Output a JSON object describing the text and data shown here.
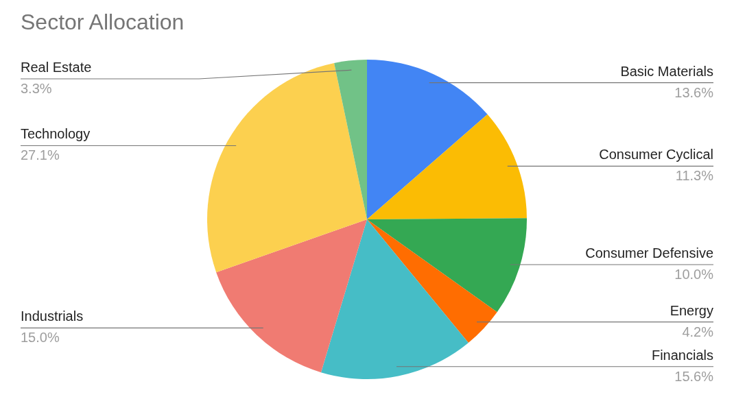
{
  "chart_data": {
    "type": "pie",
    "title": "Sector Allocation",
    "categories": [
      "Basic Materials",
      "Consumer Cyclical",
      "Consumer Defensive",
      "Energy",
      "Financials",
      "Industrials",
      "Technology",
      "Real Estate"
    ],
    "values": [
      13.6,
      11.3,
      10.0,
      4.2,
      15.6,
      15.0,
      27.1,
      3.3
    ],
    "value_labels": [
      "13.6%",
      "11.3%",
      "10.0%",
      "4.2%",
      "15.6%",
      "15.0%",
      "27.1%",
      "3.3%"
    ],
    "colors": [
      "#4285f4",
      "#fbbc04",
      "#34a853",
      "#ff6d01",
      "#46bdc6",
      "#f07b72",
      "#fcd04f",
      "#71c287"
    ]
  }
}
